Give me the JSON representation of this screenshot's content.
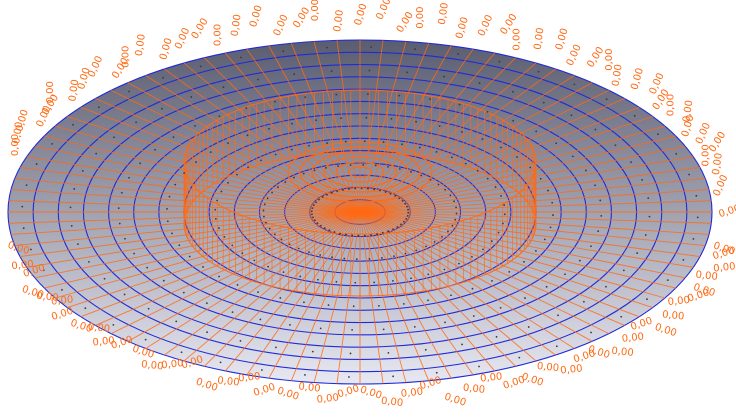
{
  "colors": {
    "background": "#ffffff",
    "surface_light": "#e8e8f2",
    "surface_dark": "#5a5c70",
    "ring_line": "#1f2bd6",
    "radial_line": "#ff6a14",
    "label": "#ff6a14",
    "node": "#3a3a3a"
  },
  "mesh": {
    "shape": "disc",
    "ring_count": 14,
    "radial_segments": 96,
    "support_ring_visible": true
  },
  "value_labels": {
    "text": "0,00",
    "repeat_count": 110
  }
}
